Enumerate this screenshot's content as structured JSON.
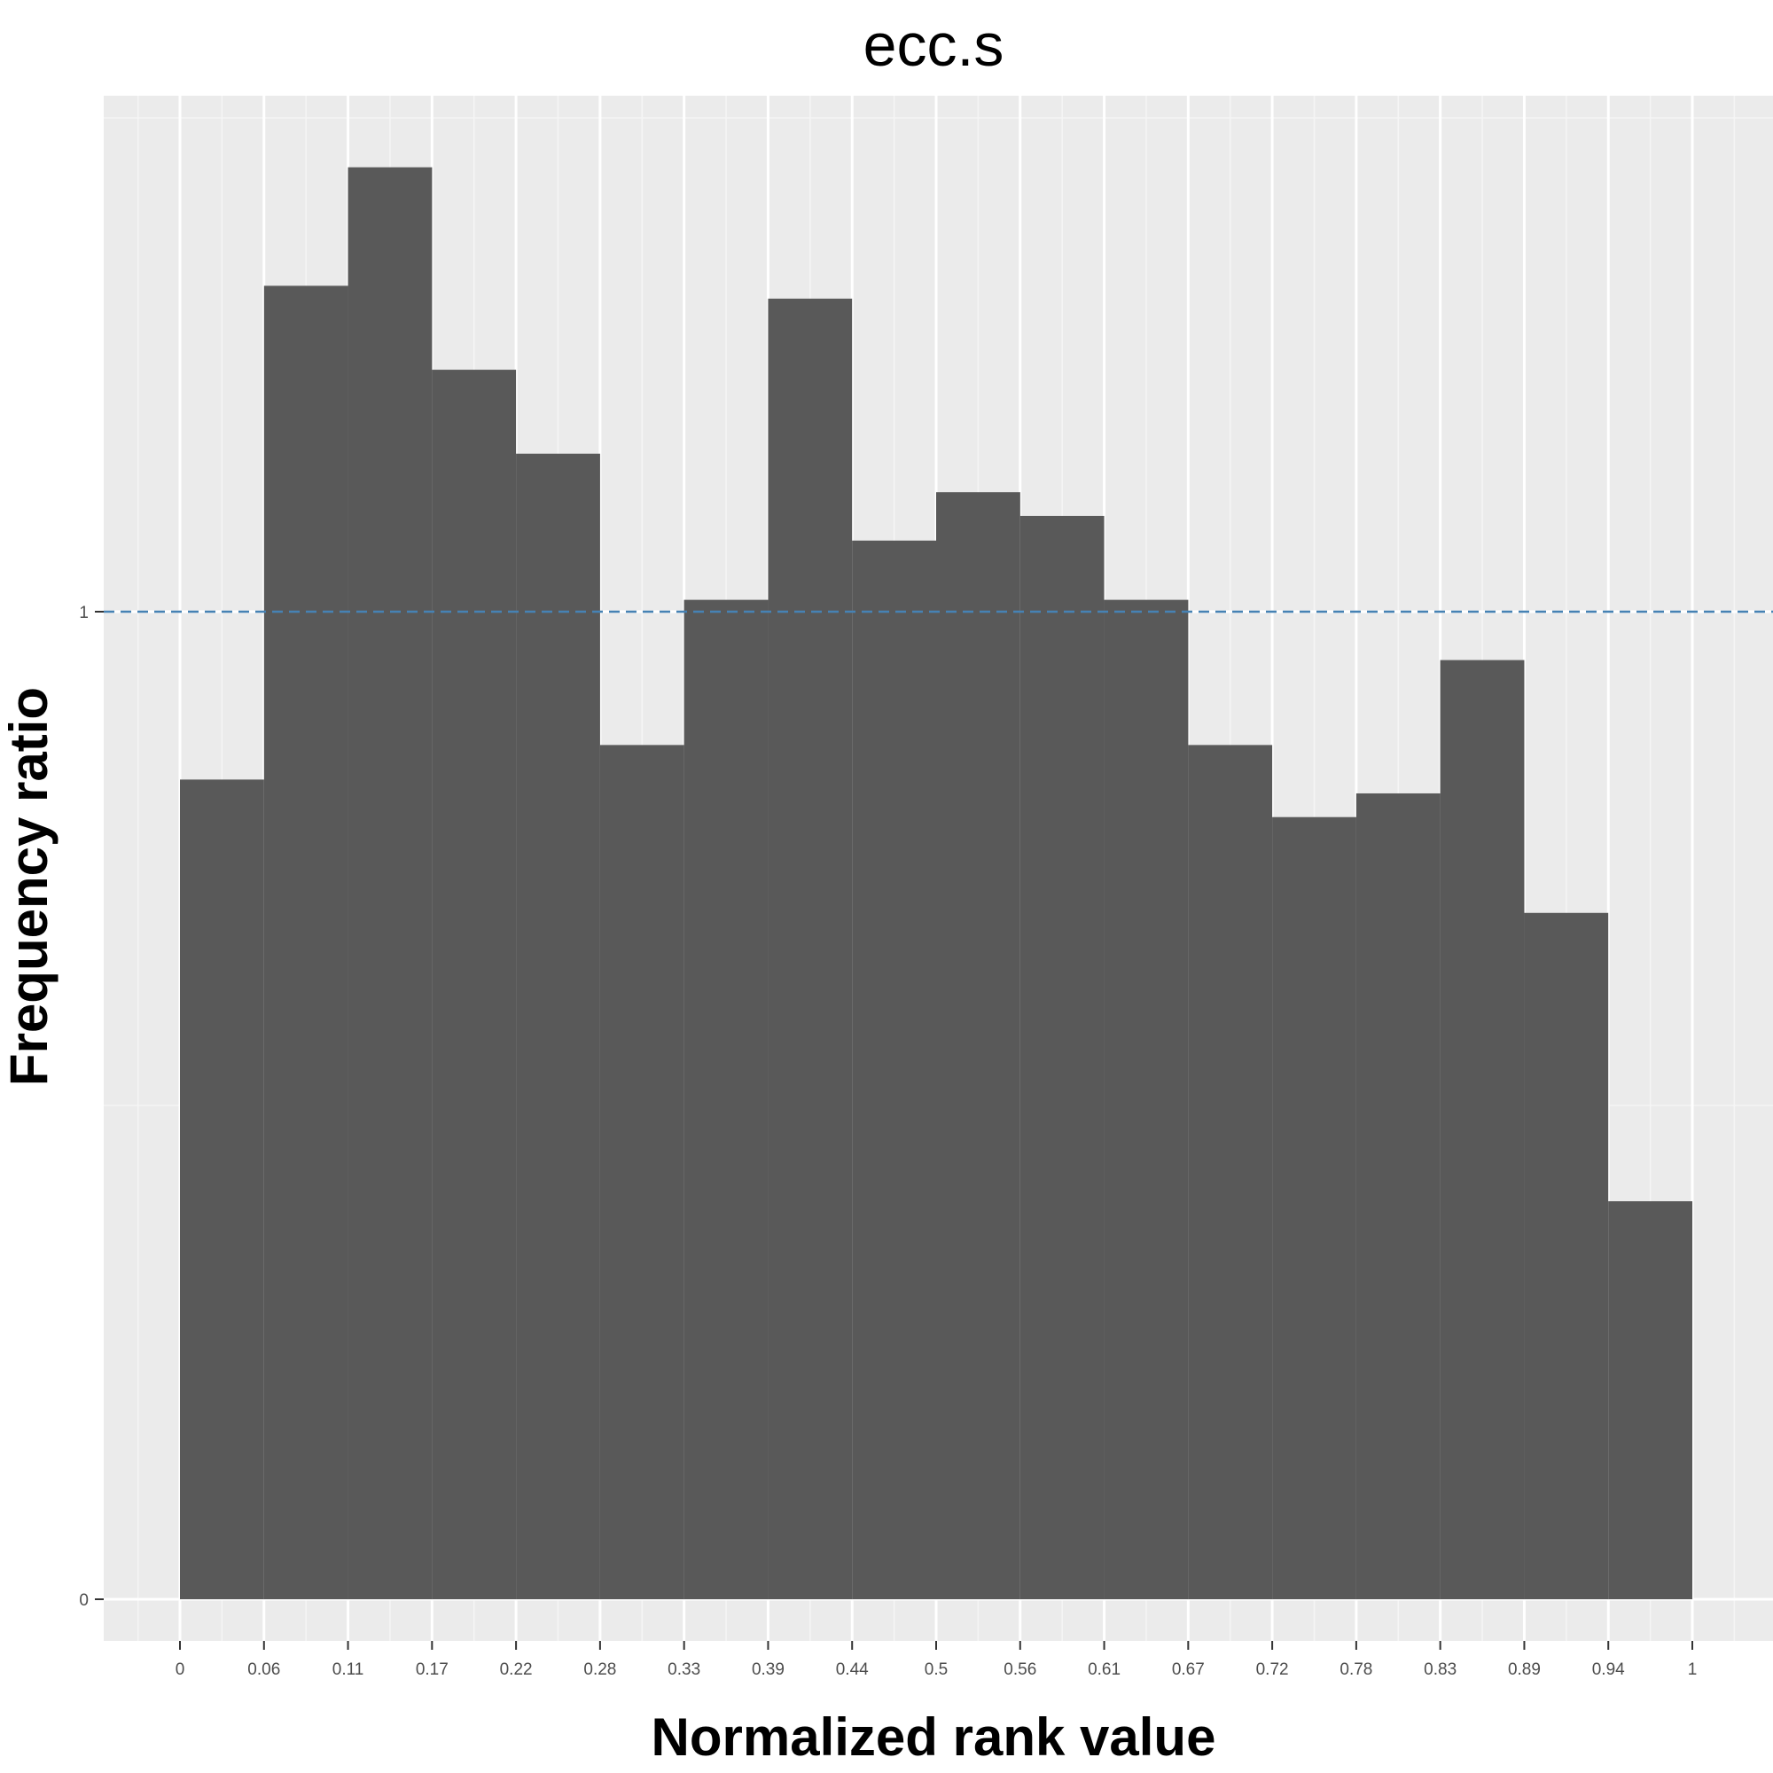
{
  "chart_data": {
    "type": "bar",
    "title": "ecc.s",
    "xlabel": "Normalized rank value",
    "ylabel": "Frequency ratio",
    "x_ticks": [
      "0",
      "0.06",
      "0.11",
      "0.17",
      "0.22",
      "0.28",
      "0.33",
      "0.39",
      "0.44",
      "0.5",
      "0.56",
      "0.61",
      "0.67",
      "0.72",
      "0.78",
      "0.83",
      "0.89",
      "0.94",
      "1"
    ],
    "y_ticks": [
      0,
      1
    ],
    "xlim": [
      0,
      1
    ],
    "ylim": [
      -0.07,
      1.57
    ],
    "grid": true,
    "reference_line": {
      "y": 1,
      "style": "dashed",
      "color": "#4682B4"
    },
    "bar_color": "#595959",
    "bins": [
      {
        "start": 0.0,
        "end": 0.0556,
        "value": 0.83
      },
      {
        "start": 0.0556,
        "end": 0.1111,
        "value": 1.33
      },
      {
        "start": 0.1111,
        "end": 0.1667,
        "value": 1.45
      },
      {
        "start": 0.1667,
        "end": 0.2222,
        "value": 1.245
      },
      {
        "start": 0.2222,
        "end": 0.2778,
        "value": 1.16
      },
      {
        "start": 0.2778,
        "end": 0.3333,
        "value": 0.865
      },
      {
        "start": 0.3333,
        "end": 0.3889,
        "value": 1.012
      },
      {
        "start": 0.3889,
        "end": 0.4444,
        "value": 1.317
      },
      {
        "start": 0.4444,
        "end": 0.5,
        "value": 1.072
      },
      {
        "start": 0.5,
        "end": 0.5556,
        "value": 1.121
      },
      {
        "start": 0.5556,
        "end": 0.6111,
        "value": 1.097
      },
      {
        "start": 0.6111,
        "end": 0.6667,
        "value": 1.012
      },
      {
        "start": 0.6667,
        "end": 0.7222,
        "value": 0.865
      },
      {
        "start": 0.7222,
        "end": 0.7778,
        "value": 0.792
      },
      {
        "start": 0.7778,
        "end": 0.8333,
        "value": 0.816
      },
      {
        "start": 0.8333,
        "end": 0.8889,
        "value": 0.951
      },
      {
        "start": 0.8889,
        "end": 0.9444,
        "value": 0.695
      },
      {
        "start": 0.9444,
        "end": 1.0,
        "value": 0.403
      }
    ]
  }
}
